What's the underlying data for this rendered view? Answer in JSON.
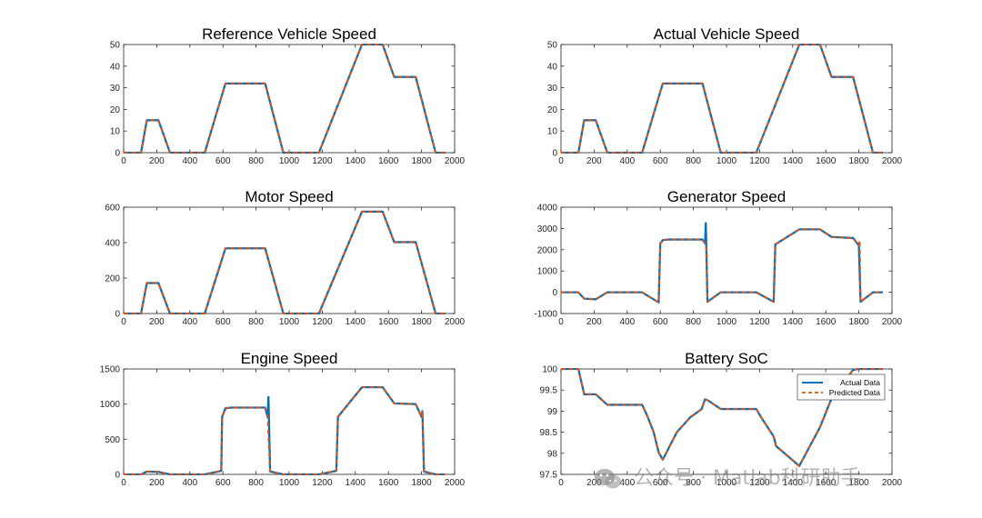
{
  "colors": {
    "actual": "#0072BD",
    "predicted": "#D95319",
    "axis": "#262626"
  },
  "watermark": {
    "text": "公众号 · Matlab科研助手",
    "icon": "wechat-icon"
  },
  "chart_data": [
    {
      "id": "ref",
      "type": "line",
      "title": "Reference Vehicle Speed",
      "xlim": [
        0,
        2000
      ],
      "ylim": [
        0,
        50
      ],
      "xticks": [
        0,
        200,
        400,
        600,
        800,
        1000,
        1200,
        1400,
        1600,
        1800,
        2000
      ],
      "yticks": [
        0,
        10,
        20,
        30,
        40,
        50
      ],
      "series": [
        {
          "name": "Actual Data",
          "x": [
            0,
            105,
            140,
            210,
            280,
            490,
            615,
            855,
            965,
            1180,
            1440,
            1565,
            1635,
            1765,
            1885,
            1945
          ],
          "y": [
            0,
            0,
            15,
            15,
            0,
            0,
            32,
            32,
            0,
            0,
            50,
            50,
            35,
            35,
            0,
            0
          ]
        },
        {
          "name": "Predicted Data",
          "x": [
            0,
            105,
            140,
            210,
            280,
            490,
            615,
            855,
            965,
            1180,
            1440,
            1565,
            1635,
            1765,
            1885,
            1945
          ],
          "y": [
            0,
            0,
            15,
            15,
            0,
            0,
            32,
            32,
            0,
            0,
            50,
            50,
            35,
            35,
            0,
            0
          ]
        }
      ]
    },
    {
      "id": "act",
      "type": "line",
      "title": "Actual Vehicle Speed",
      "xlim": [
        0,
        2000
      ],
      "ylim": [
        0,
        50
      ],
      "xticks": [
        0,
        200,
        400,
        600,
        800,
        1000,
        1200,
        1400,
        1600,
        1800,
        2000
      ],
      "yticks": [
        0,
        10,
        20,
        30,
        40,
        50
      ],
      "series": [
        {
          "name": "Actual Data",
          "x": [
            0,
            105,
            140,
            210,
            280,
            490,
            615,
            855,
            965,
            1180,
            1440,
            1565,
            1635,
            1765,
            1885,
            1945
          ],
          "y": [
            0,
            0,
            15,
            15,
            0,
            0,
            32,
            32,
            0,
            0,
            50,
            50,
            35,
            35,
            0,
            0
          ]
        },
        {
          "name": "Predicted Data",
          "x": [
            0,
            105,
            140,
            210,
            280,
            490,
            615,
            855,
            965,
            1180,
            1440,
            1565,
            1635,
            1765,
            1885,
            1945
          ],
          "y": [
            0,
            0,
            15,
            15,
            0,
            0,
            32,
            32,
            0,
            0,
            50,
            50,
            35,
            35,
            0,
            0
          ]
        }
      ]
    },
    {
      "id": "motor",
      "type": "line",
      "title": "Motor Speed",
      "xlim": [
        0,
        2000
      ],
      "ylim": [
        0,
        600
      ],
      "xticks": [
        0,
        200,
        400,
        600,
        800,
        1000,
        1200,
        1400,
        1600,
        1800,
        2000
      ],
      "yticks": [
        0,
        200,
        400,
        600
      ],
      "series": [
        {
          "name": "Actual Data",
          "x": [
            0,
            105,
            140,
            210,
            280,
            490,
            615,
            855,
            965,
            1180,
            1440,
            1565,
            1635,
            1765,
            1885,
            1945
          ],
          "y": [
            0,
            0,
            172,
            172,
            0,
            0,
            368,
            368,
            0,
            0,
            575,
            575,
            403,
            403,
            0,
            0
          ]
        },
        {
          "name": "Predicted Data",
          "x": [
            0,
            105,
            140,
            210,
            280,
            490,
            615,
            855,
            965,
            1180,
            1440,
            1565,
            1635,
            1765,
            1885,
            1945
          ],
          "y": [
            0,
            0,
            172,
            172,
            0,
            0,
            368,
            368,
            0,
            0,
            575,
            575,
            403,
            403,
            0,
            0
          ]
        }
      ]
    },
    {
      "id": "gen",
      "type": "line",
      "title": "Generator Speed",
      "xlim": [
        0,
        2000
      ],
      "ylim": [
        -1000,
        4000
      ],
      "xticks": [
        0,
        200,
        400,
        600,
        800,
        1000,
        1200,
        1400,
        1600,
        1800,
        2000
      ],
      "yticks": [
        -1000,
        0,
        1000,
        2000,
        3000,
        4000
      ],
      "series": [
        {
          "name": "Actual Data",
          "x": [
            0,
            105,
            140,
            210,
            280,
            490,
            590,
            600,
            615,
            650,
            855,
            870,
            875,
            885,
            965,
            1180,
            1285,
            1295,
            1440,
            1565,
            1635,
            1765,
            1800,
            1810,
            1885,
            1945
          ],
          "y": [
            0,
            0,
            -300,
            -330,
            0,
            0,
            -480,
            2300,
            2450,
            2480,
            2480,
            2300,
            3250,
            -450,
            0,
            0,
            -450,
            2250,
            2960,
            2960,
            2600,
            2550,
            2200,
            -450,
            0,
            0
          ]
        },
        {
          "name": "Predicted Data",
          "x": [
            0,
            105,
            140,
            210,
            280,
            490,
            590,
            600,
            615,
            650,
            855,
            870,
            880,
            885,
            965,
            1180,
            1285,
            1295,
            1440,
            1565,
            1635,
            1765,
            1800,
            1805,
            1810,
            1885,
            1945
          ],
          "y": [
            0,
            0,
            -300,
            -330,
            0,
            0,
            -480,
            2300,
            2450,
            2480,
            2480,
            2300,
            2200,
            -450,
            0,
            0,
            -450,
            2250,
            2960,
            2960,
            2600,
            2550,
            2200,
            2450,
            -450,
            0,
            0
          ]
        }
      ]
    },
    {
      "id": "engine",
      "type": "line",
      "title": "Engine Speed",
      "xlim": [
        0,
        2000
      ],
      "ylim": [
        0,
        1500
      ],
      "xticks": [
        0,
        200,
        400,
        600,
        800,
        1000,
        1200,
        1400,
        1600,
        1800,
        2000
      ],
      "yticks": [
        0,
        500,
        1000,
        1500
      ],
      "series": [
        {
          "name": "Actual Data",
          "x": [
            0,
            105,
            140,
            210,
            280,
            490,
            590,
            595,
            615,
            650,
            855,
            870,
            875,
            885,
            965,
            1180,
            1285,
            1295,
            1440,
            1565,
            1635,
            1765,
            1800,
            1805,
            1815,
            1885,
            1945
          ],
          "y": [
            0,
            0,
            40,
            35,
            0,
            0,
            50,
            820,
            940,
            950,
            950,
            820,
            1100,
            40,
            0,
            0,
            50,
            820,
            1240,
            1240,
            1010,
            1000,
            820,
            900,
            40,
            0,
            0
          ]
        },
        {
          "name": "Predicted Data",
          "x": [
            0,
            105,
            140,
            210,
            280,
            490,
            590,
            595,
            615,
            650,
            855,
            870,
            885,
            965,
            1180,
            1285,
            1295,
            1440,
            1565,
            1635,
            1765,
            1800,
            1805,
            1815,
            1885,
            1945
          ],
          "y": [
            0,
            0,
            40,
            35,
            0,
            0,
            50,
            820,
            940,
            950,
            950,
            820,
            40,
            0,
            0,
            50,
            820,
            1240,
            1240,
            1010,
            1000,
            820,
            900,
            40,
            0,
            0
          ]
        }
      ]
    },
    {
      "id": "soc",
      "type": "line",
      "title": "Battery SoC",
      "xlim": [
        0,
        2000
      ],
      "ylim": [
        97.5,
        100
      ],
      "xticks": [
        0,
        200,
        400,
        600,
        800,
        1000,
        1200,
        1400,
        1600,
        1800,
        2000
      ],
      "yticks": [
        97.5,
        98,
        98.5,
        99,
        99.5,
        100
      ],
      "legend": {
        "location": "top-right",
        "entries": [
          "Actual Data",
          "Predicted Data"
        ]
      },
      "series": [
        {
          "name": "Actual Data",
          "x": [
            0,
            105,
            140,
            210,
            280,
            490,
            520,
            560,
            590,
            615,
            700,
            780,
            850,
            870,
            890,
            965,
            1180,
            1210,
            1285,
            1300,
            1440,
            1565,
            1635,
            1765,
            1800,
            1830,
            1885,
            1945
          ],
          "y": [
            100,
            100,
            99.4,
            99.4,
            99.15,
            99.15,
            98.9,
            98.5,
            98.02,
            97.85,
            98.5,
            98.85,
            99.05,
            99.28,
            99.25,
            99.05,
            99.05,
            98.85,
            98.4,
            98.17,
            97.7,
            98.62,
            99.3,
            99.98,
            100,
            100,
            100,
            100
          ]
        },
        {
          "name": "Predicted Data",
          "x": [
            0,
            105,
            140,
            210,
            280,
            490,
            520,
            560,
            590,
            615,
            700,
            780,
            850,
            870,
            890,
            965,
            1180,
            1210,
            1285,
            1300,
            1440,
            1565,
            1635,
            1765,
            1800,
            1830,
            1885,
            1945
          ],
          "y": [
            100,
            100,
            99.4,
            99.4,
            99.15,
            99.15,
            98.9,
            98.5,
            98.02,
            97.85,
            98.5,
            98.85,
            99.05,
            99.28,
            99.25,
            99.05,
            99.05,
            98.85,
            98.4,
            98.17,
            97.7,
            98.62,
            99.3,
            99.98,
            100,
            100,
            100,
            100
          ]
        }
      ]
    }
  ]
}
